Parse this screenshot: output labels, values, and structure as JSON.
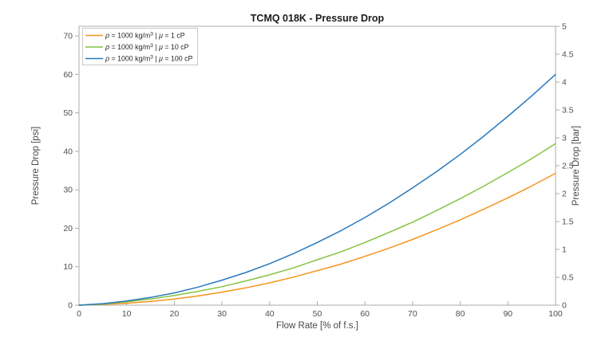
{
  "title": "TCMQ 018K - Pressure Drop",
  "chart_data": {
    "type": "line",
    "title": "TCMQ 018K - Pressure Drop",
    "xlabel": "Flow Rate [% of f.s.]",
    "ylabel_left": "Pressure Drop [psi]",
    "ylabel_right": "Pressure Drop [bar]",
    "xlim": [
      0,
      100
    ],
    "ylim_left_psi": [
      0,
      72.5
    ],
    "ylim_right_bar": [
      0,
      5
    ],
    "x_ticks": [
      0,
      10,
      20,
      30,
      40,
      50,
      60,
      70,
      80,
      90,
      100
    ],
    "y_ticks_left_psi": [
      0,
      10,
      20,
      30,
      40,
      50,
      60,
      70
    ],
    "y_ticks_right_bar": [
      0,
      0.5,
      1,
      1.5,
      2,
      2.5,
      3,
      3.5,
      4,
      4.5,
      5
    ],
    "grid": false,
    "legend_position": "top-left",
    "x": [
      0,
      5,
      10,
      15,
      20,
      25,
      30,
      35,
      40,
      45,
      50,
      55,
      60,
      65,
      70,
      75,
      80,
      85,
      90,
      95,
      100
    ],
    "series": [
      {
        "name": "ρ = 1000 kg/m³ | μ = 1 cP",
        "color": "#F7941E",
        "values_psi": [
          0,
          0.2,
          0.5,
          1.0,
          1.6,
          2.4,
          3.4,
          4.5,
          5.8,
          7.3,
          9.0,
          10.7,
          12.7,
          14.8,
          17.1,
          19.6,
          22.2,
          25.0,
          27.9,
          31.0,
          34.3
        ],
        "values_bar": [
          0,
          0.01,
          0.03,
          0.07,
          0.11,
          0.17,
          0.23,
          0.31,
          0.4,
          0.5,
          0.62,
          0.74,
          0.88,
          1.02,
          1.18,
          1.35,
          1.53,
          1.72,
          1.92,
          2.14,
          2.36
        ]
      },
      {
        "name": "ρ = 1000 kg/m³ | μ = 10 cP",
        "color": "#84C441",
        "values_psi": [
          0,
          0.3,
          0.9,
          1.6,
          2.5,
          3.6,
          4.8,
          6.3,
          7.9,
          9.7,
          11.8,
          13.9,
          16.3,
          18.9,
          21.6,
          24.6,
          27.7,
          31.0,
          34.5,
          38.1,
          42.0
        ],
        "values_bar": [
          0,
          0.02,
          0.06,
          0.11,
          0.17,
          0.25,
          0.33,
          0.43,
          0.54,
          0.67,
          0.81,
          0.96,
          1.12,
          1.3,
          1.49,
          1.7,
          1.91,
          2.14,
          2.38,
          2.63,
          2.9
        ]
      },
      {
        "name": "ρ = 1000 kg/m³ | μ = 100 cP",
        "color": "#2878BE",
        "values_psi": [
          0,
          0.4,
          1.1,
          2.0,
          3.2,
          4.7,
          6.5,
          8.5,
          10.8,
          13.4,
          16.3,
          19.4,
          22.8,
          26.5,
          30.5,
          34.7,
          39.2,
          44.0,
          49.1,
          54.4,
          60.0
        ],
        "values_bar": [
          0,
          0.03,
          0.08,
          0.14,
          0.22,
          0.32,
          0.45,
          0.59,
          0.74,
          0.92,
          1.12,
          1.34,
          1.57,
          1.83,
          2.1,
          2.39,
          2.7,
          3.03,
          3.39,
          3.75,
          4.14
        ]
      }
    ]
  },
  "legend": {
    "items": [
      {
        "rho": "ρ",
        "eq1": " = 1000 kg/m",
        "sup": "3",
        "sep": " | ",
        "mu": "μ",
        "eq2": " = 1 cP"
      },
      {
        "rho": "ρ",
        "eq1": " = 1000 kg/m",
        "sup": "3",
        "sep": " | ",
        "mu": "μ",
        "eq2": " = 10 cP"
      },
      {
        "rho": "ρ",
        "eq1": " = 1000 kg/m",
        "sup": "3",
        "sep": " | ",
        "mu": "μ",
        "eq2": " = 100 cP"
      }
    ]
  },
  "style": {
    "frame_color": "#ababab",
    "legend_border_color": "#c9c9c9",
    "tick_label_color": "#4f4f4f"
  }
}
